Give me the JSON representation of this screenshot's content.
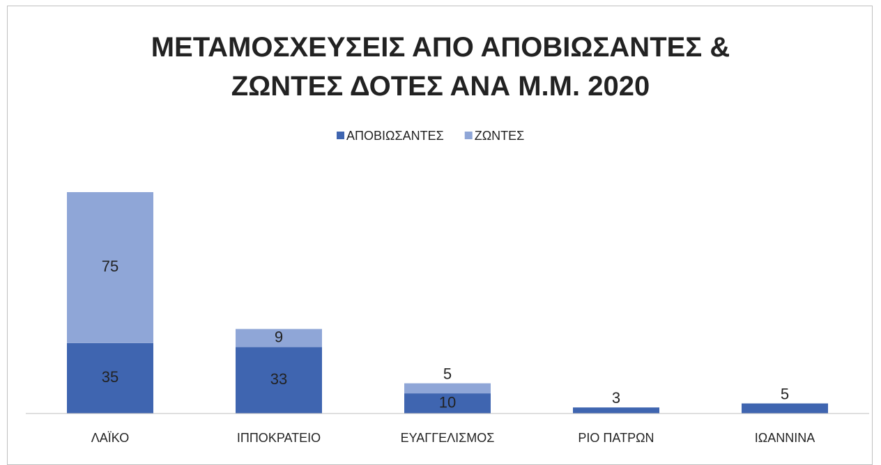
{
  "chart_data": {
    "type": "stacked_bar",
    "title": "ΜΕΤΑΜΟΣΧΕΥΣΕΙΣ ΑΠΟ ΑΠΟΒΙΩΣΑΝΤΕΣ & ΖΩΝΤΕΣ ΔΟΤΕΣ ΑΝΑ Μ.Μ. 2020",
    "categories": [
      "ΛΑΪΚΟ",
      "ΙΠΠΟΚΡΑΤΕΙΟ",
      "ΕΥΑΓΓΕΛΙΣΜΟΣ",
      "ΡΙΟ ΠΑΤΡΩΝ",
      "ΙΩΑΝΝΙΝΑ"
    ],
    "series": [
      {
        "name": "ΑΠΟΒΙΩΣΑΝΤΕΣ",
        "color": "#3f65b0",
        "values": [
          35,
          33,
          10,
          3,
          5
        ]
      },
      {
        "name": "ΖΩΝΤΕΣ",
        "color": "#8fa6d7",
        "values": [
          75,
          9,
          5,
          null,
          null
        ]
      }
    ],
    "legend": "top",
    "data_labels": true
  }
}
